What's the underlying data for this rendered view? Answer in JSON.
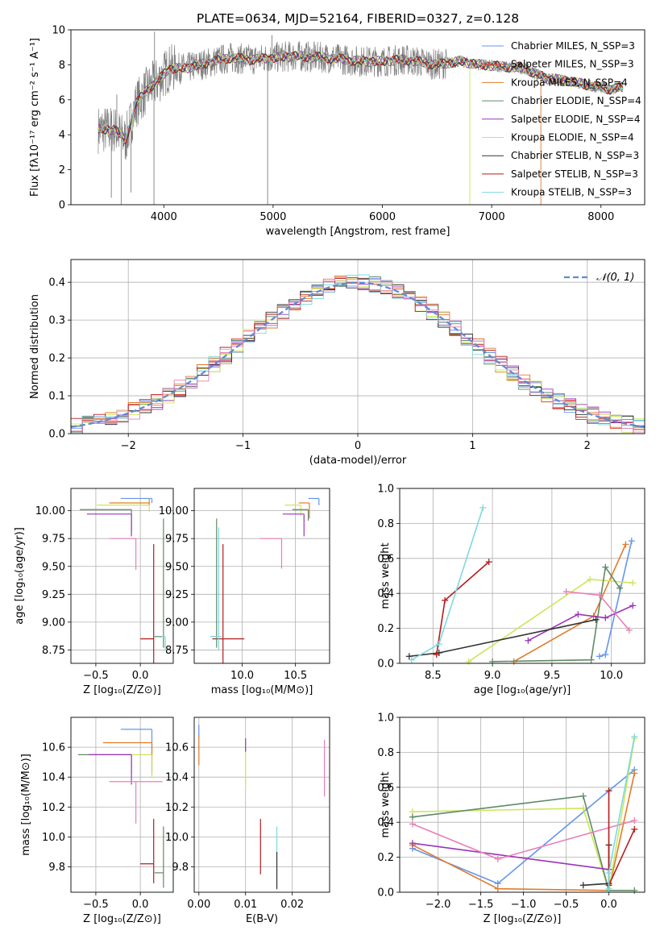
{
  "chart_data": [
    {
      "type": "line",
      "title": "PLATE=0634, MJD=52164, FIBERID=0327, z=0.128",
      "xlabel": "wavelength [Angstrom, rest frame]",
      "ylabel": "Flux [fλ10⁻¹⁷ erg cm⁻² s⁻¹ A⁻¹]",
      "xlim": [
        3150,
        8400
      ],
      "ylim": [
        0,
        10
      ],
      "xticks": [
        4000,
        5000,
        6000,
        7000,
        8000
      ],
      "yticks": [
        0,
        2,
        4,
        6,
        8,
        10
      ],
      "xtick_labels": [
        "4000",
        "5000",
        "6000",
        "7000",
        "8000"
      ],
      "ytick_labels": [
        "0",
        "2",
        "4",
        "6",
        "8",
        "10"
      ],
      "legend_position": "upper-right",
      "data_trace": {
        "x_start": 3400,
        "x_end": 8200,
        "color": "#808080"
      },
      "spectrum_shape": {
        "x": [
          3400,
          3550,
          3650,
          3750,
          3850,
          3950,
          4050,
          4200,
          4400,
          4600,
          4800,
          5000,
          5200,
          5500,
          5800,
          6000,
          6200,
          6400,
          6500,
          6700,
          6900,
          7100,
          7300,
          7500,
          7700,
          7900,
          8100,
          8200
        ],
        "y": [
          4.3,
          4.3,
          3.7,
          5.8,
          6.6,
          7.1,
          7.8,
          7.8,
          8.1,
          8.4,
          8.3,
          8.4,
          8.5,
          8.4,
          8.2,
          8.2,
          8.3,
          8.1,
          8.0,
          8.2,
          8.0,
          7.9,
          7.8,
          7.2,
          7.1,
          6.8,
          6.6,
          6.7
        ]
      },
      "spikes": [
        {
          "x": 3520,
          "y": 0.4
        },
        {
          "x": 3570,
          "y": 6.3
        },
        {
          "x": 3610,
          "y": 0
        },
        {
          "x": 3700,
          "y": 0.7
        },
        {
          "x": 3910,
          "y": 0
        },
        {
          "x": 3915,
          "y": 9.9
        },
        {
          "x": 4950,
          "y": 0
        },
        {
          "x": 4990,
          "y": 9.7
        },
        {
          "x": 6800,
          "y": 0
        },
        {
          "x": 7450,
          "y": 0
        }
      ],
      "series": [
        {
          "name": "Chabrier MILES, N_SSP=3",
          "color": "#6495ed"
        },
        {
          "name": "Salpeter MILES, N_SSP=3",
          "color": "#e0442f"
        },
        {
          "name": "Kroupa MILES, N_SSP=4",
          "color": "#e07b2a"
        },
        {
          "name": "Chabrier ELODIE, N_SSP=4",
          "color": "#5f8a66"
        },
        {
          "name": "Salpeter ELODIE, N_SSP=4",
          "color": "#9b34b8"
        },
        {
          "name": "Kroupa ELODIE, N_SSP=4",
          "color": "#cde65a"
        },
        {
          "name": "Chabrier STELIB, N_SSP=3",
          "color": "#333333"
        },
        {
          "name": "Salpeter STELIB, N_SSP=3",
          "color": "#b51c1c"
        },
        {
          "name": "Kroupa STELIB, N_SSP=3",
          "color": "#7fd8df"
        }
      ]
    },
    {
      "type": "histogram",
      "xlabel": "(data-model)/error",
      "ylabel": "Normed distribution",
      "xlim": [
        -2.5,
        2.5
      ],
      "ylim": [
        0,
        0.46
      ],
      "xticks": [
        -2,
        -1,
        0,
        1,
        2
      ],
      "yticks": [
        0,
        0.1,
        0.2,
        0.3,
        0.4
      ],
      "xtick_labels": [
        "−2",
        "−1",
        "0",
        "1",
        "2"
      ],
      "ytick_labels": [
        "0.0",
        "0.1",
        "0.2",
        "0.3",
        "0.4"
      ],
      "grid": true,
      "legend_position": "upper-right",
      "reference": {
        "name": "𝒩(0, 1)",
        "color": "#5b8bd8",
        "mean": 0,
        "sigma": 1
      },
      "bin_edges_start": -2.5,
      "bin_width": 0.1,
      "bin_count": 50,
      "series_colors": [
        "#6495ed",
        "#e0442f",
        "#e07b2a",
        "#5f8a66",
        "#9b34b8",
        "#cde65a",
        "#333333",
        "#b51c1c",
        "#7fd8df",
        "#e87fb8"
      ]
    },
    {
      "type": "errorbar",
      "xlabel": "Z [log₁₀(Z/Z⊙)]",
      "ylabel": "age  [log₁₀(age/yr)]",
      "xlim": [
        -0.78,
        0.37
      ],
      "ylim": [
        8.63,
        10.2
      ],
      "xticks": [
        -0.5,
        0.0
      ],
      "yticks": [
        8.75,
        9.0,
        9.25,
        9.5,
        9.75,
        10.0
      ],
      "xtick_labels": [
        "−0.5",
        "0.0"
      ],
      "ytick_labels": [
        "8.75",
        "9.00",
        "9.25",
        "9.50",
        "9.75",
        "10.00"
      ],
      "grid": true,
      "points": [
        {
          "x": 0.13,
          "y": 10.11,
          "xerr": [
            0.35,
            0
          ],
          "yerr": [
            0.04,
            0
          ],
          "color": "#6495ed"
        },
        {
          "x": 0.1,
          "y": 10.07,
          "xerr": [
            0.45,
            0
          ],
          "yerr": [
            0.02,
            0.04
          ],
          "color": "#e07b2a"
        },
        {
          "x": 0.1,
          "y": 10.05,
          "xerr": [
            0.59,
            0
          ],
          "yerr": [
            0.06,
            0
          ],
          "color": "#cde65a"
        },
        {
          "x": -0.1,
          "y": 10.01,
          "xerr": [
            0.58,
            0
          ],
          "yerr": [
            0.2,
            0
          ],
          "color": "#5f8a66"
        },
        {
          "x": -0.1,
          "y": 9.97,
          "xerr": [
            0.5,
            0
          ],
          "yerr": [
            0.2,
            0
          ],
          "color": "#9b34b8"
        },
        {
          "x": -0.05,
          "y": 9.75,
          "xerr": [
            0.3,
            0
          ],
          "yerr": [
            0.28,
            0
          ],
          "color": "#e87fb8"
        },
        {
          "x": 0.15,
          "y": 8.85,
          "xerr": [
            0.15,
            0
          ],
          "yerr": [
            0.35,
            0.85
          ],
          "color": "#b51c1c"
        },
        {
          "x": 0.26,
          "y": 8.87,
          "xerr": [
            0.1,
            0
          ],
          "yerr": [
            0.1,
            1.06
          ],
          "color": "#5f8a66"
        },
        {
          "x": 0.28,
          "y": 8.87,
          "xerr": [
            0.04,
            0
          ],
          "yerr": [
            0.12,
            0
          ],
          "color": "#7fd8df"
        }
      ]
    },
    {
      "type": "errorbar",
      "xlabel": "mass [log₁₀(M/M⊙)]",
      "ylabel": "",
      "xlim": [
        9.55,
        10.82
      ],
      "ylim": [
        8.63,
        10.2
      ],
      "xticks": [
        10.0,
        10.5
      ],
      "yticks": [
        8.75,
        9.0,
        9.25,
        9.5,
        9.75,
        10.0
      ],
      "xtick_labels": [
        "10.0",
        "10.5"
      ],
      "ytick_labels": [
        "8.75",
        "9.00",
        "9.25",
        "9.50",
        "9.75",
        "10.00"
      ],
      "grid": true,
      "points": [
        {
          "x": 10.72,
          "y": 10.11,
          "xerr": [
            0.1,
            0
          ],
          "yerr": [
            0.06,
            0
          ],
          "color": "#6495ed"
        },
        {
          "x": 10.63,
          "y": 10.07,
          "xerr": [
            0.1,
            0
          ],
          "yerr": [
            0.14,
            0
          ],
          "color": "#e07b2a"
        },
        {
          "x": 10.55,
          "y": 10.05,
          "xerr": [
            0.15,
            0
          ],
          "yerr": [
            0.1,
            0
          ],
          "color": "#cde65a"
        },
        {
          "x": 10.62,
          "y": 10.01,
          "xerr": [
            0.15,
            0
          ],
          "yerr": [
            0.1,
            0
          ],
          "color": "#5f8a66"
        },
        {
          "x": 10.58,
          "y": 9.97,
          "xerr": [
            0.2,
            0
          ],
          "yerr": [
            0.2,
            0
          ],
          "color": "#9b34b8"
        },
        {
          "x": 10.37,
          "y": 9.75,
          "xerr": [
            0.2,
            0
          ],
          "yerr": [
            0.27,
            0
          ],
          "color": "#e87fb8"
        },
        {
          "x": 9.82,
          "y": 8.85,
          "xerr": [
            0.1,
            0.2
          ],
          "yerr": [
            0.35,
            0.85
          ],
          "color": "#b51c1c"
        },
        {
          "x": 9.76,
          "y": 8.87,
          "xerr": [
            0.05,
            0
          ],
          "yerr": [
            0.1,
            1.06
          ],
          "color": "#5f8a66"
        },
        {
          "x": 9.78,
          "y": 8.87,
          "xerr": [
            0.08,
            0.03
          ],
          "yerr": [
            0.12,
            0.98
          ],
          "color": "#7fd8df"
        }
      ]
    },
    {
      "type": "line",
      "xlabel": "age  [log₁₀(age/yr)]",
      "ylabel": "mass weight",
      "xlim": [
        8.22,
        10.28
      ],
      "ylim": [
        0,
        1.0
      ],
      "xticks": [
        8.5,
        9.0,
        9.5,
        10.0
      ],
      "yticks": [
        0,
        0.2,
        0.4,
        0.6,
        0.8,
        1.0
      ],
      "xtick_labels": [
        "8.5",
        "9.0",
        "9.5",
        "10.0"
      ],
      "ytick_labels": [
        "0.0",
        "0.2",
        "0.4",
        "0.6",
        "0.8",
        "1.0"
      ],
      "grid": true,
      "series": [
        {
          "color": "#6495ed",
          "x": [
            9.9,
            9.95,
            10.17
          ],
          "y": [
            0.04,
            0.05,
            0.7
          ]
        },
        {
          "color": "#e07b2a",
          "x": [
            9.18,
            9.85,
            10.12
          ],
          "y": [
            0.01,
            0.27,
            0.68
          ]
        },
        {
          "color": "#cde65a",
          "x": [
            8.8,
            9.82,
            10.18
          ],
          "y": [
            0.01,
            0.48,
            0.46
          ]
        },
        {
          "color": "#5f8a66",
          "x": [
            9.0,
            9.83,
            9.95,
            10.07
          ],
          "y": [
            0.01,
            0.02,
            0.55,
            0.43
          ]
        },
        {
          "color": "#9b34b8",
          "x": [
            9.3,
            9.72,
            9.95,
            10.18
          ],
          "y": [
            0.13,
            0.28,
            0.26,
            0.33
          ]
        },
        {
          "color": "#e87fb8",
          "x": [
            9.62,
            9.9,
            10.15
          ],
          "y": [
            0.41,
            0.39,
            0.19
          ]
        },
        {
          "color": "#333333",
          "x": [
            8.3,
            8.55,
            9.87
          ],
          "y": [
            0.04,
            0.06,
            0.25
          ]
        },
        {
          "color": "#b51c1c",
          "x": [
            8.53,
            8.6,
            8.97
          ],
          "y": [
            0.05,
            0.36,
            0.58
          ]
        },
        {
          "color": "#7fd8df",
          "x": [
            8.32,
            8.55,
            8.92
          ],
          "y": [
            0.02,
            0.11,
            0.89
          ]
        }
      ]
    },
    {
      "type": "errorbar",
      "xlabel": "Z [log₁₀(Z/Z⊙)]",
      "ylabel": "mass [log₁₀(M/M⊙)]",
      "xlim": [
        -0.78,
        0.37
      ],
      "ylim": [
        9.63,
        10.8
      ],
      "xticks": [
        -0.5,
        0.0
      ],
      "yticks": [
        9.8,
        10.0,
        10.2,
        10.4,
        10.6
      ],
      "xtick_labels": [
        "−0.5",
        "0.0"
      ],
      "ytick_labels": [
        "9.8",
        "10.0",
        "10.2",
        "10.4",
        "10.6"
      ],
      "grid": true,
      "points": [
        {
          "x": 0.13,
          "y": 10.72,
          "xerr": [
            0.35,
            0
          ],
          "yerr": [
            0.3,
            0
          ],
          "color": "#6495ed"
        },
        {
          "x": 0.13,
          "y": 10.63,
          "xerr": [
            0.55,
            0
          ],
          "yerr": [
            0.2,
            0
          ],
          "color": "#e07b2a"
        },
        {
          "x": 0.13,
          "y": 10.55,
          "xerr": [
            0.6,
            0
          ],
          "yerr": [
            0.15,
            0
          ],
          "color": "#cde65a"
        },
        {
          "x": -0.1,
          "y": 10.55,
          "xerr": [
            0.6,
            0
          ],
          "yerr": [
            0.13,
            0
          ],
          "color": "#5f8a66"
        },
        {
          "x": -0.1,
          "y": 10.55,
          "xerr": [
            0.48,
            0
          ],
          "yerr": [
            0.2,
            0
          ],
          "color": "#9b34b8"
        },
        {
          "x": -0.05,
          "y": 10.37,
          "xerr": [
            0.3,
            0.3
          ],
          "yerr": [
            0.28,
            0
          ],
          "color": "#e87fb8"
        },
        {
          "x": 0.15,
          "y": 9.82,
          "xerr": [
            0.15,
            0
          ],
          "yerr": [
            0.13,
            0.3
          ],
          "color": "#b51c1c"
        },
        {
          "x": 0.26,
          "y": 9.76,
          "xerr": [
            0.1,
            0
          ],
          "yerr": [
            0.1,
            0.31
          ],
          "color": "#5f8a66"
        }
      ]
    },
    {
      "type": "errorbar",
      "xlabel": "E(B-V)",
      "ylabel": "",
      "xlim": [
        -0.001,
        0.028
      ],
      "ylim": [
        9.63,
        10.8
      ],
      "xticks": [
        0.0,
        0.01,
        0.02
      ],
      "yticks": [
        9.8,
        10.0,
        10.2,
        10.4,
        10.6
      ],
      "xtick_labels": [
        "0.00",
        "0.01",
        "0.02"
      ],
      "ytick_labels": [
        "9.8",
        "10.0",
        "10.2",
        "10.4",
        "10.6"
      ],
      "grid": true,
      "points": [
        {
          "x": 0.0,
          "y": 10.72,
          "yerr": [
            0.05,
            0.03
          ],
          "color": "#6495ed"
        },
        {
          "x": 0.0,
          "y": 10.63,
          "yerr": [
            0.15,
            0.05
          ],
          "color": "#e07b2a"
        },
        {
          "x": 0.01,
          "y": 10.55,
          "yerr": [
            0.22,
            0.05
          ],
          "color": "#cde65a"
        },
        {
          "x": 0.01,
          "y": 10.62,
          "yerr": [
            0.05,
            0.04
          ],
          "color": "#9b34b8"
        },
        {
          "x": 0.0269,
          "y": 10.37,
          "yerr": [
            0.1,
            0.28
          ],
          "color": "#e87fb8"
        },
        {
          "x": 0.0132,
          "y": 9.82,
          "yerr": [
            0.07,
            0.3
          ],
          "color": "#b51c1c"
        },
        {
          "x": 0.0167,
          "y": 9.76,
          "yerr": [
            0.1,
            0.31
          ],
          "color": "#7fd8df"
        },
        {
          "x": 0.0167,
          "y": 9.7,
          "yerr": [
            0.05,
            0.2
          ],
          "color": "#333333"
        }
      ]
    },
    {
      "type": "line",
      "xlabel": "Z [log₁₀(Z/Z⊙)]",
      "ylabel": "mass weight",
      "xlim": [
        -2.45,
        0.42
      ],
      "ylim": [
        0,
        1.0
      ],
      "xticks": [
        -2.0,
        -1.5,
        -1.0,
        -0.5,
        0.0
      ],
      "yticks": [
        0,
        0.2,
        0.4,
        0.6,
        0.8,
        1.0
      ],
      "xtick_labels": [
        "−2.0",
        "−1.5",
        "−1.0",
        "−0.5",
        "0.0"
      ],
      "ytick_labels": [
        "0.0",
        "0.2",
        "0.4",
        "0.6",
        "0.8",
        "1.0"
      ],
      "grid": true,
      "series": [
        {
          "color": "#6495ed",
          "x": [
            -2.3,
            -1.3,
            0.0,
            0.3
          ],
          "y": [
            0.25,
            0.05,
            0.58,
            0.7
          ]
        },
        {
          "color": "#e07b2a",
          "x": [
            -2.3,
            -1.3,
            0.0,
            0.3
          ],
          "y": [
            0.27,
            0.02,
            0.01,
            0.68
          ]
        },
        {
          "color": "#cde65a",
          "x": [
            -2.3,
            -0.3,
            0.0,
            0.3
          ],
          "y": [
            0.46,
            0.48,
            0.01,
            0.88
          ]
        },
        {
          "color": "#5f8a66",
          "x": [
            -2.3,
            -0.3,
            0.0,
            0.3
          ],
          "y": [
            0.43,
            0.55,
            0.01,
            0.01
          ]
        },
        {
          "color": "#9b34b8",
          "x": [
            -2.3,
            0.0
          ],
          "y": [
            0.28,
            0.13
          ]
        },
        {
          "color": "#e87fb8",
          "x": [
            -2.3,
            -1.3,
            0.3
          ],
          "y": [
            0.39,
            0.19,
            0.41
          ]
        },
        {
          "color": "#333333",
          "x": [
            -0.3,
            0.0,
            0.0
          ],
          "y": [
            0.04,
            0.05,
            0.27
          ]
        },
        {
          "color": "#b51c1c",
          "x": [
            0.0,
            0.0,
            0.3
          ],
          "y": [
            0.58,
            0.04,
            0.36
          ]
        },
        {
          "color": "#7fd8df",
          "x": [
            0.0,
            0.0,
            0.3
          ],
          "y": [
            0.02,
            0.11,
            0.89
          ]
        }
      ]
    }
  ]
}
